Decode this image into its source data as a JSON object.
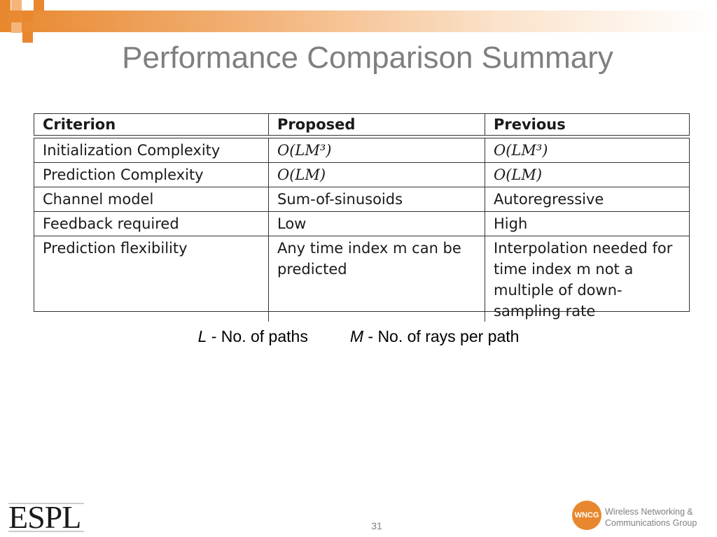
{
  "slide": {
    "title": "Performance Comparison Summary",
    "page_number": "31"
  },
  "table": {
    "headers": [
      "Criterion",
      "Proposed",
      "Previous"
    ],
    "rows": [
      {
        "criterion": "Initialization Complexity",
        "proposed": "O(LM³)",
        "previous": "O(LM³)"
      },
      {
        "criterion": "Prediction Complexity",
        "proposed": "O(LM)",
        "previous": "O(LM)"
      },
      {
        "criterion": "Channel model",
        "proposed": "Sum-of-sinusoids",
        "previous": "Autoregressive"
      },
      {
        "criterion": "Feedback required",
        "proposed": "Low",
        "previous": "High"
      },
      {
        "criterion": "Prediction flexibility",
        "proposed": "Any time index m can be predicted",
        "previous": "Interpolation needed for time index m not a multiple of down-sampling rate"
      }
    ]
  },
  "notes": {
    "l_symbol": "L",
    "l_text": " - No. of paths",
    "m_symbol": "M",
    "m_text": " - No. of rays per path"
  },
  "footer": {
    "espl_logo": "ESPL",
    "wncg_badge": "WNCG",
    "wncg_line1": "Wireless Networking &",
    "wncg_line2": "Communications Group"
  },
  "colors": {
    "accent_orange": "#e8872d",
    "title_gray": "#7f7f7f"
  }
}
